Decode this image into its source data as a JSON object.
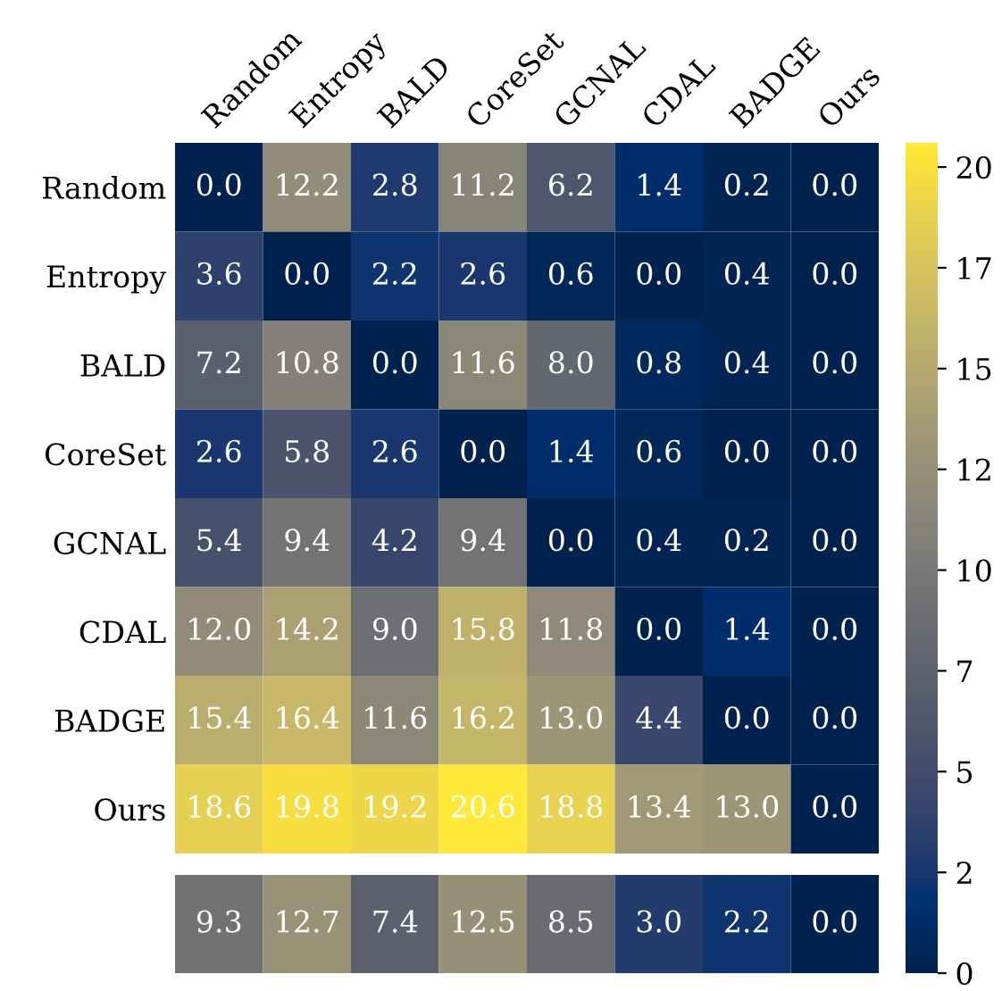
{
  "chart_data": [
    {
      "type": "heatmap",
      "categories": [
        "Random",
        "Entropy",
        "BALD",
        "CoreSet",
        "GCNAL",
        "CDAL",
        "BADGE",
        "Ours"
      ],
      "y_categories": [
        "Random",
        "Entropy",
        "BALD",
        "CoreSet",
        "GCNAL",
        "CDAL",
        "BADGE",
        "Ours"
      ],
      "cells": [
        [
          0.0,
          12.2,
          2.8,
          11.2,
          6.2,
          1.4,
          0.2,
          0.0
        ],
        [
          3.6,
          0.0,
          2.2,
          2.6,
          0.6,
          0.0,
          0.4,
          0.0
        ],
        [
          7.2,
          10.8,
          0.0,
          11.6,
          8.0,
          0.8,
          0.4,
          0.0
        ],
        [
          2.6,
          5.8,
          2.6,
          0.0,
          1.4,
          0.6,
          0.0,
          0.0
        ],
        [
          5.4,
          9.4,
          4.2,
          9.4,
          0.0,
          0.4,
          0.2,
          0.0
        ],
        [
          12.0,
          14.2,
          9.0,
          15.8,
          11.8,
          0.0,
          1.4,
          0.0
        ],
        [
          15.4,
          16.4,
          11.6,
          16.2,
          13.0,
          4.4,
          0.0,
          0.0
        ],
        [
          18.6,
          19.8,
          19.2,
          20.6,
          18.8,
          13.4,
          13.0,
          0.0
        ]
      ],
      "cell_labels": [
        [
          "0.0",
          "12.2",
          "2.8",
          "11.2",
          "6.2",
          "1.4",
          "0.2",
          "0.0"
        ],
        [
          "3.6",
          "0.0",
          "2.2",
          "2.6",
          "0.6",
          "0.0",
          "0.4",
          "0.0"
        ],
        [
          "7.2",
          "10.8",
          "0.0",
          "11.6",
          "8.0",
          "0.8",
          "0.4",
          "0.0"
        ],
        [
          "2.6",
          "5.8",
          "2.6",
          "0.0",
          "1.4",
          "0.6",
          "0.0",
          "0.0"
        ],
        [
          "5.4",
          "9.4",
          "4.2",
          "9.4",
          "0.0",
          "0.4",
          "0.2",
          "0.0"
        ],
        [
          "12.0",
          "14.2",
          "9.0",
          "15.8",
          "11.8",
          "0.0",
          "1.4",
          "0.0"
        ],
        [
          "15.4",
          "16.4",
          "11.6",
          "16.2",
          "13.0",
          "4.4",
          "0.0",
          "0.0"
        ],
        [
          "18.6",
          "19.8",
          "19.2",
          "20.6",
          "18.8",
          "13.4",
          "13.0",
          "0.0"
        ]
      ],
      "clim": [
        0,
        20.6
      ],
      "cticks": [
        0,
        {
          "value": 2.5,
          "label": "2"
        },
        5,
        {
          "value": 7.5,
          "label": "7"
        },
        10,
        {
          "value": 12.5,
          "label": "12"
        },
        15,
        {
          "value": 17.5,
          "label": "17"
        },
        20
      ]
    },
    {
      "type": "heatmap",
      "categories": [
        null,
        null,
        null,
        null,
        null,
        null,
        null,
        null
      ],
      "y_categories": [
        null
      ],
      "cells": [
        [
          9.3,
          12.7,
          7.4,
          12.5,
          8.5,
          3.0,
          2.2,
          0.0
        ]
      ],
      "cell_labels": [
        [
          "9.3",
          "12.7",
          "7.4",
          "12.5",
          "8.5",
          "3.0",
          "2.2",
          "0.0"
        ]
      ]
    }
  ]
}
